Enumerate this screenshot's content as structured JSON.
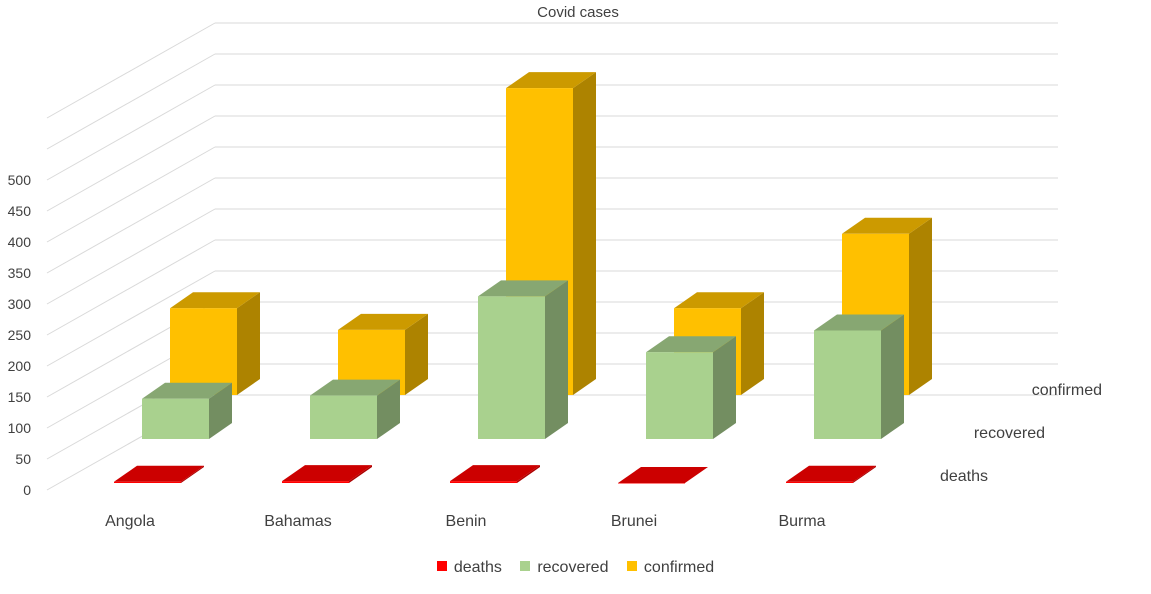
{
  "chart_data": {
    "type": "bar",
    "title": "Covid cases",
    "categories": [
      "Angola",
      "Bahamas",
      "Benin",
      "Brunei",
      "Burma"
    ],
    "series": [
      {
        "name": "deaths",
        "color": "#ff0000",
        "values": [
          2,
          3,
          3,
          0,
          2
        ]
      },
      {
        "name": "recovered",
        "color": "#a9d18e",
        "values": [
          65,
          70,
          230,
          140,
          175
        ]
      },
      {
        "name": "confirmed",
        "color": "#ffc000",
        "values": [
          140,
          105,
          495,
          140,
          260
        ]
      }
    ],
    "yticks": [
      0,
      50,
      100,
      150,
      200,
      250,
      300,
      350,
      400,
      450,
      500
    ],
    "ylim": [
      0,
      500
    ],
    "xlabel": "",
    "ylabel": "",
    "grid": true,
    "legend": "bottom"
  }
}
